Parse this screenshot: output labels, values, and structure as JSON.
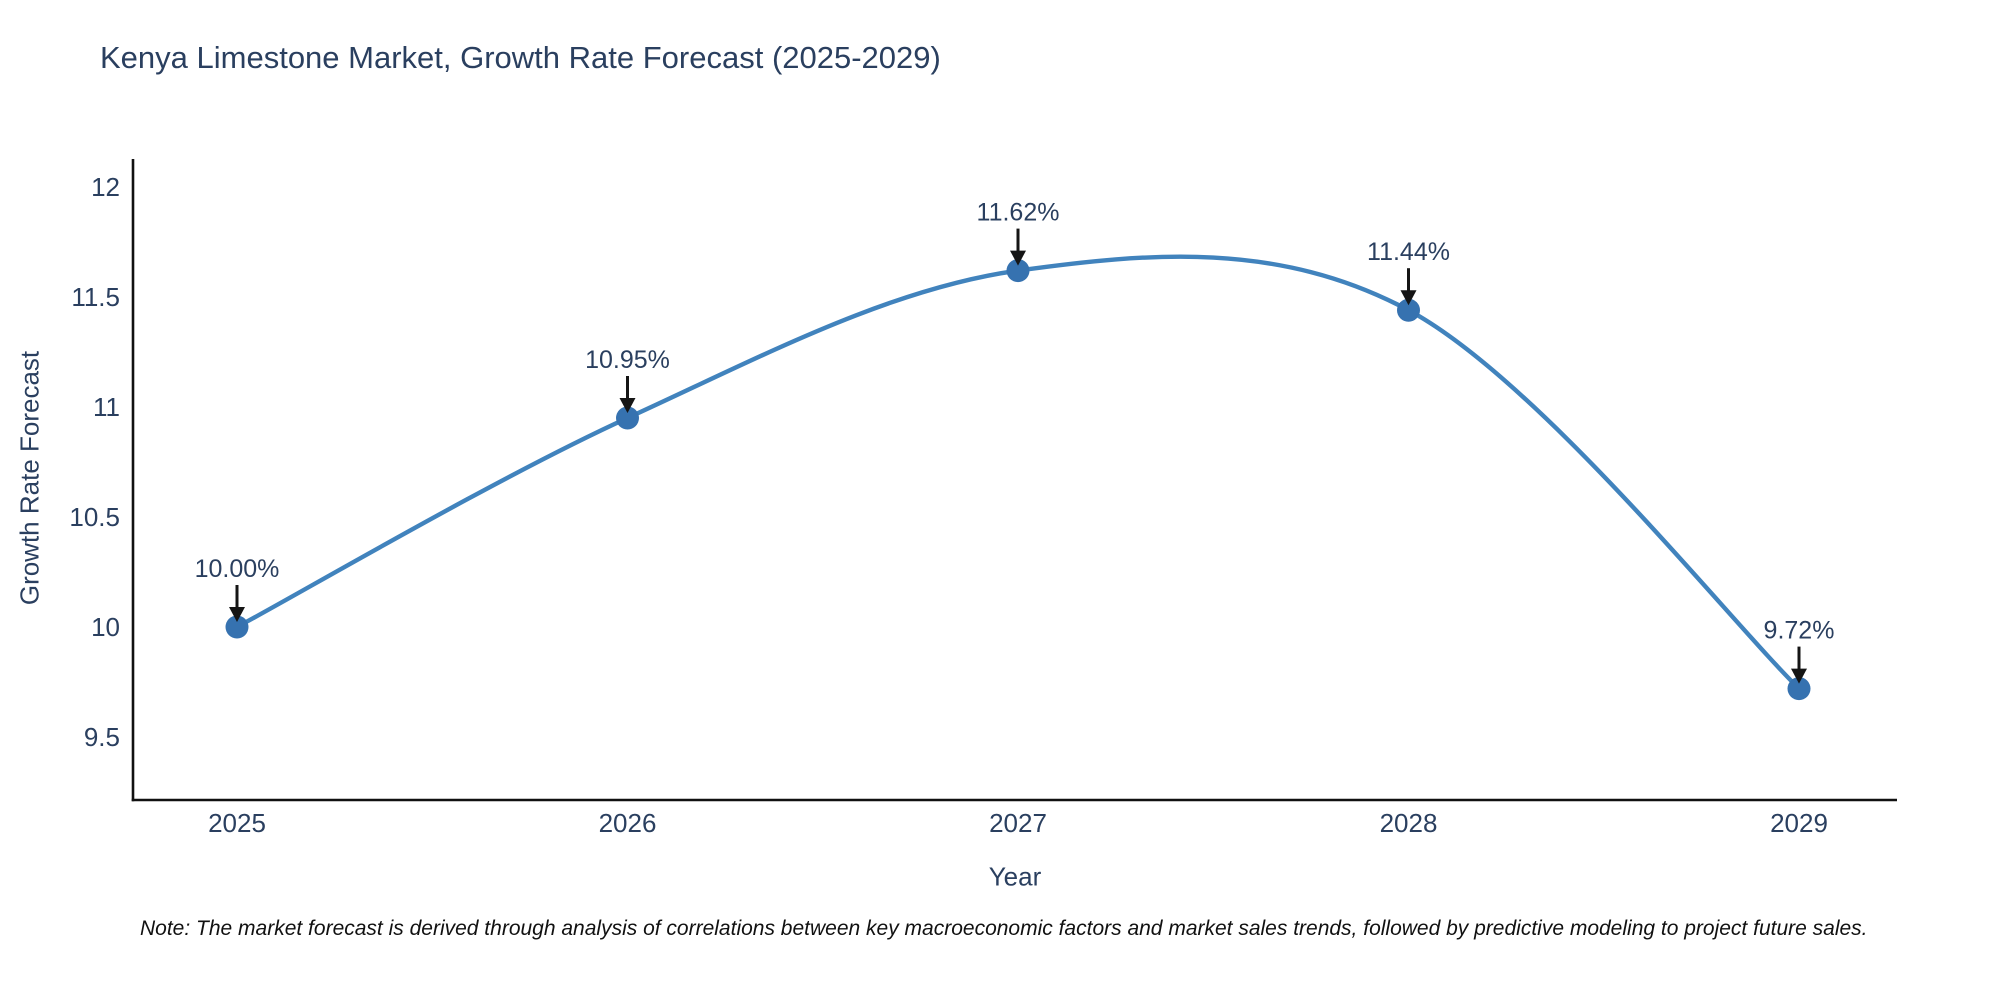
{
  "title": "Kenya Limestone Market, Growth Rate Forecast (2025-2029)",
  "note": "Note: The market forecast is derived through analysis of correlations between key macroeconomic factors and market sales trends, followed by predictive modeling to project future sales.",
  "colors": {
    "text": "#2a3f5f",
    "line": "#4183bd",
    "marker": "#3672b0",
    "axis": "#111111",
    "arrow": "#151515",
    "background": "#ffffff"
  },
  "chart_data": {
    "type": "line",
    "title": "Kenya Limestone Market, Growth Rate Forecast (2025-2029)",
    "xlabel": "Year",
    "ylabel": "Growth Rate Forecast",
    "x": [
      2025,
      2026,
      2027,
      2028,
      2029
    ],
    "values": [
      10.0,
      10.95,
      11.62,
      11.44,
      9.72
    ],
    "point_labels": [
      "10.00%",
      "10.95%",
      "11.62%",
      "11.44%",
      "9.72%"
    ],
    "yticks": [
      9.5,
      10,
      10.5,
      11,
      11.5,
      12
    ],
    "ylim": [
      9.21,
      12.12
    ],
    "xlim": [
      2024.73,
      2029.25
    ],
    "line_shape": "spline",
    "grid": false,
    "legend": "none",
    "markers": true,
    "annotations_style": "value label above each point with black down arrow"
  }
}
